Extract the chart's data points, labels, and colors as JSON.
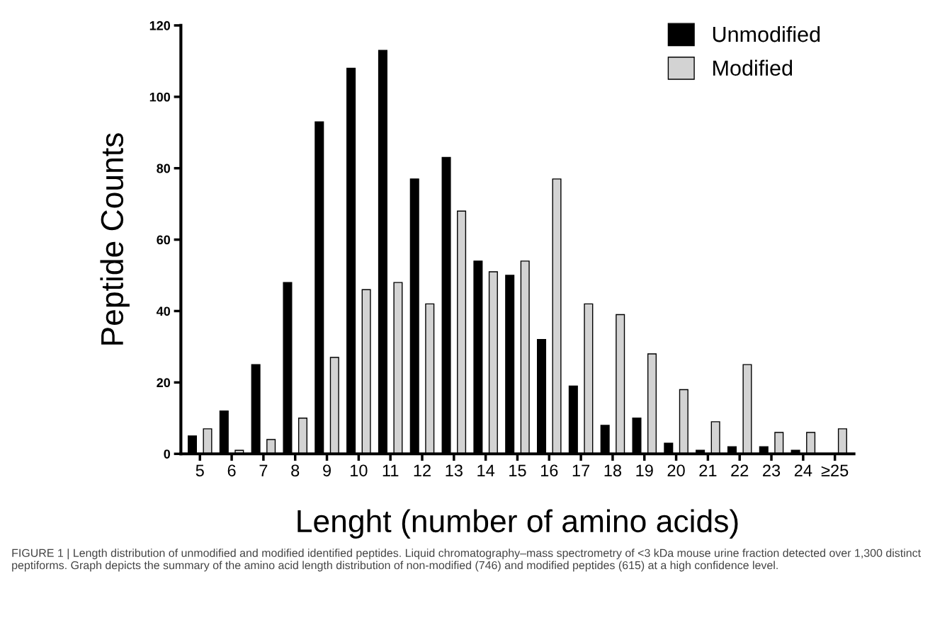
{
  "chart_data": {
    "type": "bar",
    "categories": [
      "5",
      "6",
      "7",
      "8",
      "9",
      "10",
      "11",
      "12",
      "13",
      "14",
      "15",
      "16",
      "17",
      "18",
      "19",
      "20",
      "21",
      "22",
      "23",
      "24",
      "≥25"
    ],
    "series": [
      {
        "name": "Unmodified",
        "color": "#000000",
        "values": [
          5,
          12,
          25,
          48,
          93,
          108,
          113,
          77,
          83,
          54,
          50,
          32,
          19,
          8,
          10,
          3,
          1,
          2,
          2,
          1,
          0
        ]
      },
      {
        "name": "Modified",
        "color": "#d3d3d3",
        "values": [
          7,
          1,
          4,
          10,
          27,
          46,
          48,
          42,
          68,
          51,
          54,
          77,
          42,
          39,
          28,
          18,
          9,
          25,
          6,
          6,
          7
        ]
      }
    ],
    "xlabel": "Lenght (number of amino acids)",
    "ylabel": "Peptide Counts",
    "ylim": [
      0,
      120
    ],
    "yticks": [
      0,
      20,
      40,
      60,
      80,
      100,
      120
    ],
    "grid": false,
    "legend": "top right",
    "annotations": [
      "FIGURE 1 | Length distribution of unmodified and modified identified peptides. Liquid chromatography–mass spectrometry of <3 kDa mouse urine fraction detected over 1,300 distinct peptiforms. Graph depicts the summary of the amino acid length distribution of non-modified (746) and modified peptides (615) at a high confidence level."
    ]
  }
}
